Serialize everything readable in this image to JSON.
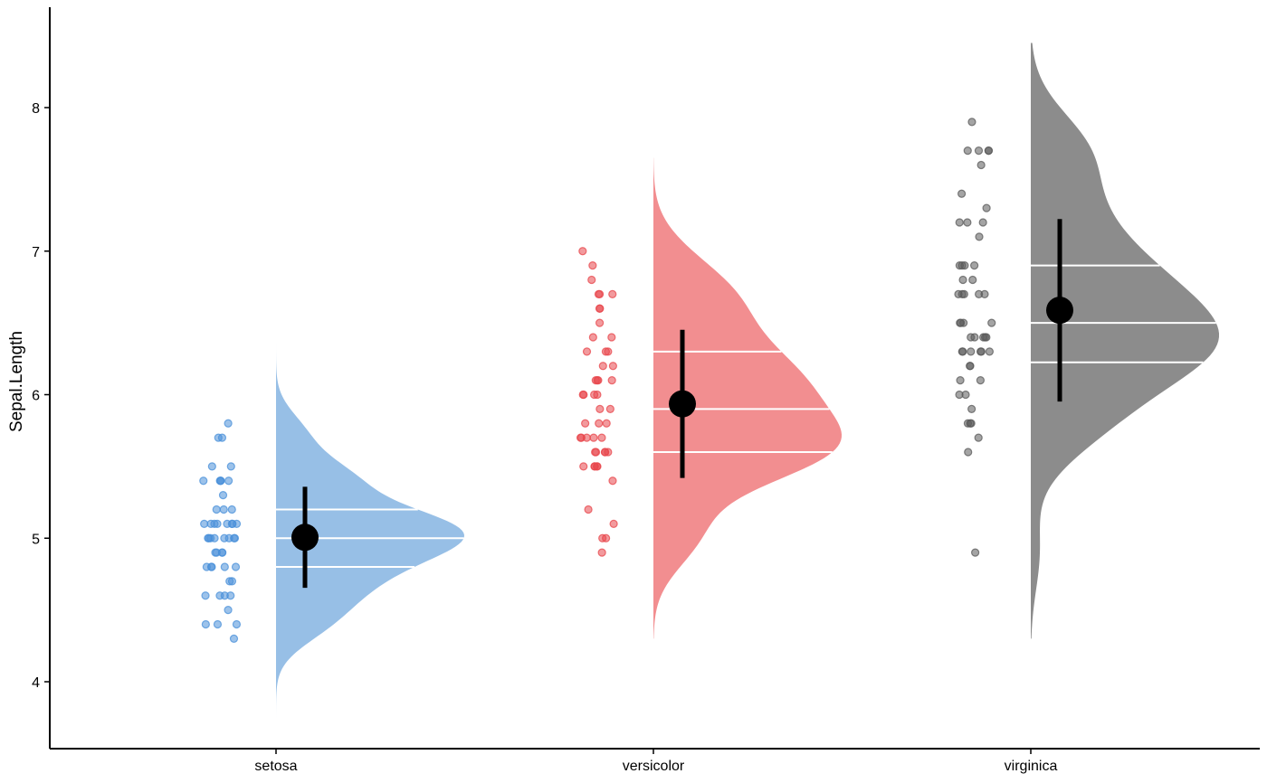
{
  "chart_data": {
    "type": "raincloud",
    "title": "",
    "xlabel": "",
    "ylabel": "Sepal.Length",
    "ylim": [
      3.55,
      8.7
    ],
    "yticks": [
      4,
      5,
      6,
      7,
      8
    ],
    "grid": false,
    "legend": "none",
    "categories": [
      "setosa",
      "versicolor",
      "virginica"
    ],
    "groups": [
      {
        "category": "setosa",
        "color": "#4A90D9",
        "cloud_color": "#97BFE6",
        "mean": 5.006,
        "mean_minus_sd": 4.654,
        "mean_plus_sd": 5.358,
        "quantiles": [
          4.8,
          5.0,
          5.2
        ],
        "density_range": [
          3.75,
          6.36
        ],
        "points": [
          5.8,
          5.7,
          5.7,
          5.5,
          5.5,
          5.4,
          5.4,
          5.4,
          5.4,
          5.4,
          5.3,
          5.2,
          5.2,
          5.2,
          5.1,
          5.1,
          5.1,
          5.1,
          5.1,
          5.1,
          5.1,
          5.1,
          5.0,
          5.0,
          5.0,
          5.0,
          5.0,
          5.0,
          5.0,
          5.0,
          4.9,
          4.9,
          4.9,
          4.9,
          4.8,
          4.8,
          4.8,
          4.8,
          4.8,
          4.7,
          4.7,
          4.6,
          4.6,
          4.6,
          4.6,
          4.5,
          4.4,
          4.4,
          4.4,
          4.3
        ]
      },
      {
        "category": "versicolor",
        "color": "#E8474C",
        "cloud_color": "#F28E90",
        "mean": 5.936,
        "mean_minus_sd": 5.42,
        "mean_plus_sd": 6.452,
        "quantiles": [
          5.6,
          5.9,
          6.3
        ],
        "density_range": [
          4.3,
          7.65
        ],
        "points": [
          7.0,
          6.9,
          6.8,
          6.7,
          6.7,
          6.7,
          6.6,
          6.6,
          6.5,
          6.4,
          6.4,
          6.3,
          6.3,
          6.3,
          6.2,
          6.2,
          6.1,
          6.1,
          6.1,
          6.1,
          6.0,
          6.0,
          6.0,
          6.0,
          5.9,
          5.9,
          5.8,
          5.8,
          5.8,
          5.7,
          5.7,
          5.7,
          5.7,
          5.7,
          5.6,
          5.6,
          5.6,
          5.6,
          5.6,
          5.5,
          5.5,
          5.5,
          5.5,
          5.5,
          5.4,
          5.2,
          5.1,
          5.0,
          5.0,
          4.9
        ]
      },
      {
        "category": "virginica",
        "color": "#5A5A5A",
        "cloud_color": "#8C8C8C",
        "mean": 6.588,
        "mean_minus_sd": 5.952,
        "mean_plus_sd": 7.224,
        "quantiles": [
          6.225,
          6.5,
          6.9
        ],
        "density_range": [
          4.3,
          8.45
        ],
        "points": [
          7.9,
          7.7,
          7.7,
          7.7,
          7.7,
          7.6,
          7.4,
          7.3,
          7.2,
          7.2,
          7.2,
          7.1,
          6.9,
          6.9,
          6.9,
          6.9,
          6.8,
          6.8,
          6.7,
          6.7,
          6.7,
          6.7,
          6.7,
          6.5,
          6.5,
          6.5,
          6.5,
          6.4,
          6.4,
          6.4,
          6.4,
          6.4,
          6.3,
          6.3,
          6.3,
          6.3,
          6.3,
          6.3,
          6.2,
          6.2,
          6.1,
          6.1,
          6.0,
          6.0,
          5.9,
          5.8,
          5.8,
          5.8,
          5.7,
          5.6,
          4.9
        ]
      }
    ]
  }
}
